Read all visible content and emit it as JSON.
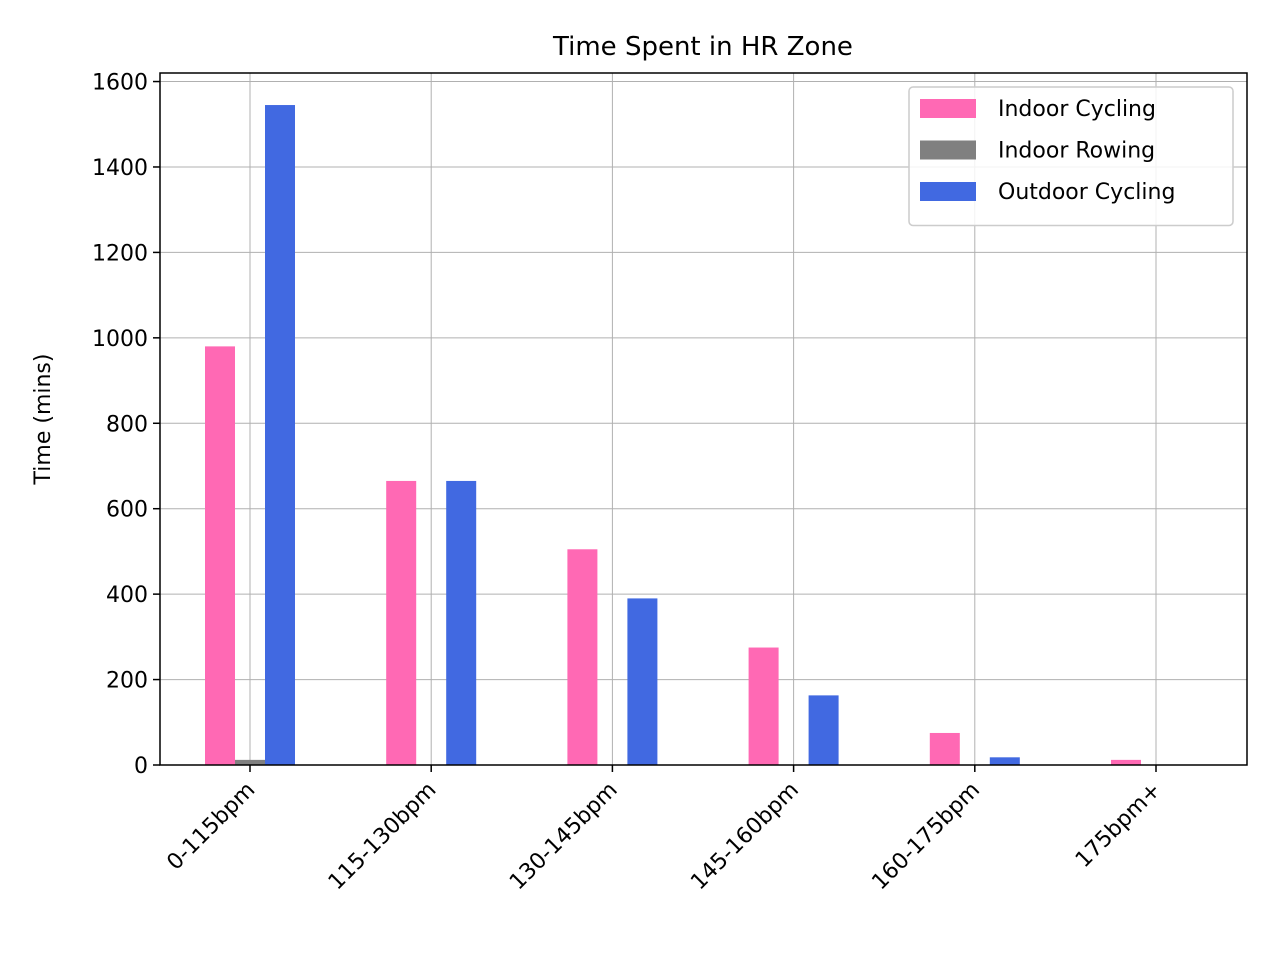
{
  "chart_data": {
    "type": "bar",
    "title": "Time Spent in HR Zone",
    "xlabel": "",
    "ylabel": "Time (mins)",
    "ylim": [
      0,
      1620
    ],
    "yticks": [
      0,
      200,
      400,
      600,
      800,
      1000,
      1200,
      1400,
      1600
    ],
    "categories": [
      "0-115bpm",
      "115-130bpm",
      "130-145bpm",
      "145-160bpm",
      "160-175bpm",
      "175bpm+"
    ],
    "series": [
      {
        "name": "Indoor Cycling",
        "color": "#ff69b4",
        "values": [
          980,
          665,
          505,
          275,
          75,
          12
        ]
      },
      {
        "name": "Indoor Rowing",
        "color": "#808080",
        "values": [
          12,
          0,
          0,
          0,
          0,
          0
        ]
      },
      {
        "name": "Outdoor Cycling",
        "color": "#4169e1",
        "values": [
          1545,
          665,
          390,
          163,
          18,
          0
        ]
      }
    ],
    "grid": true,
    "legend_position": "top-right"
  }
}
